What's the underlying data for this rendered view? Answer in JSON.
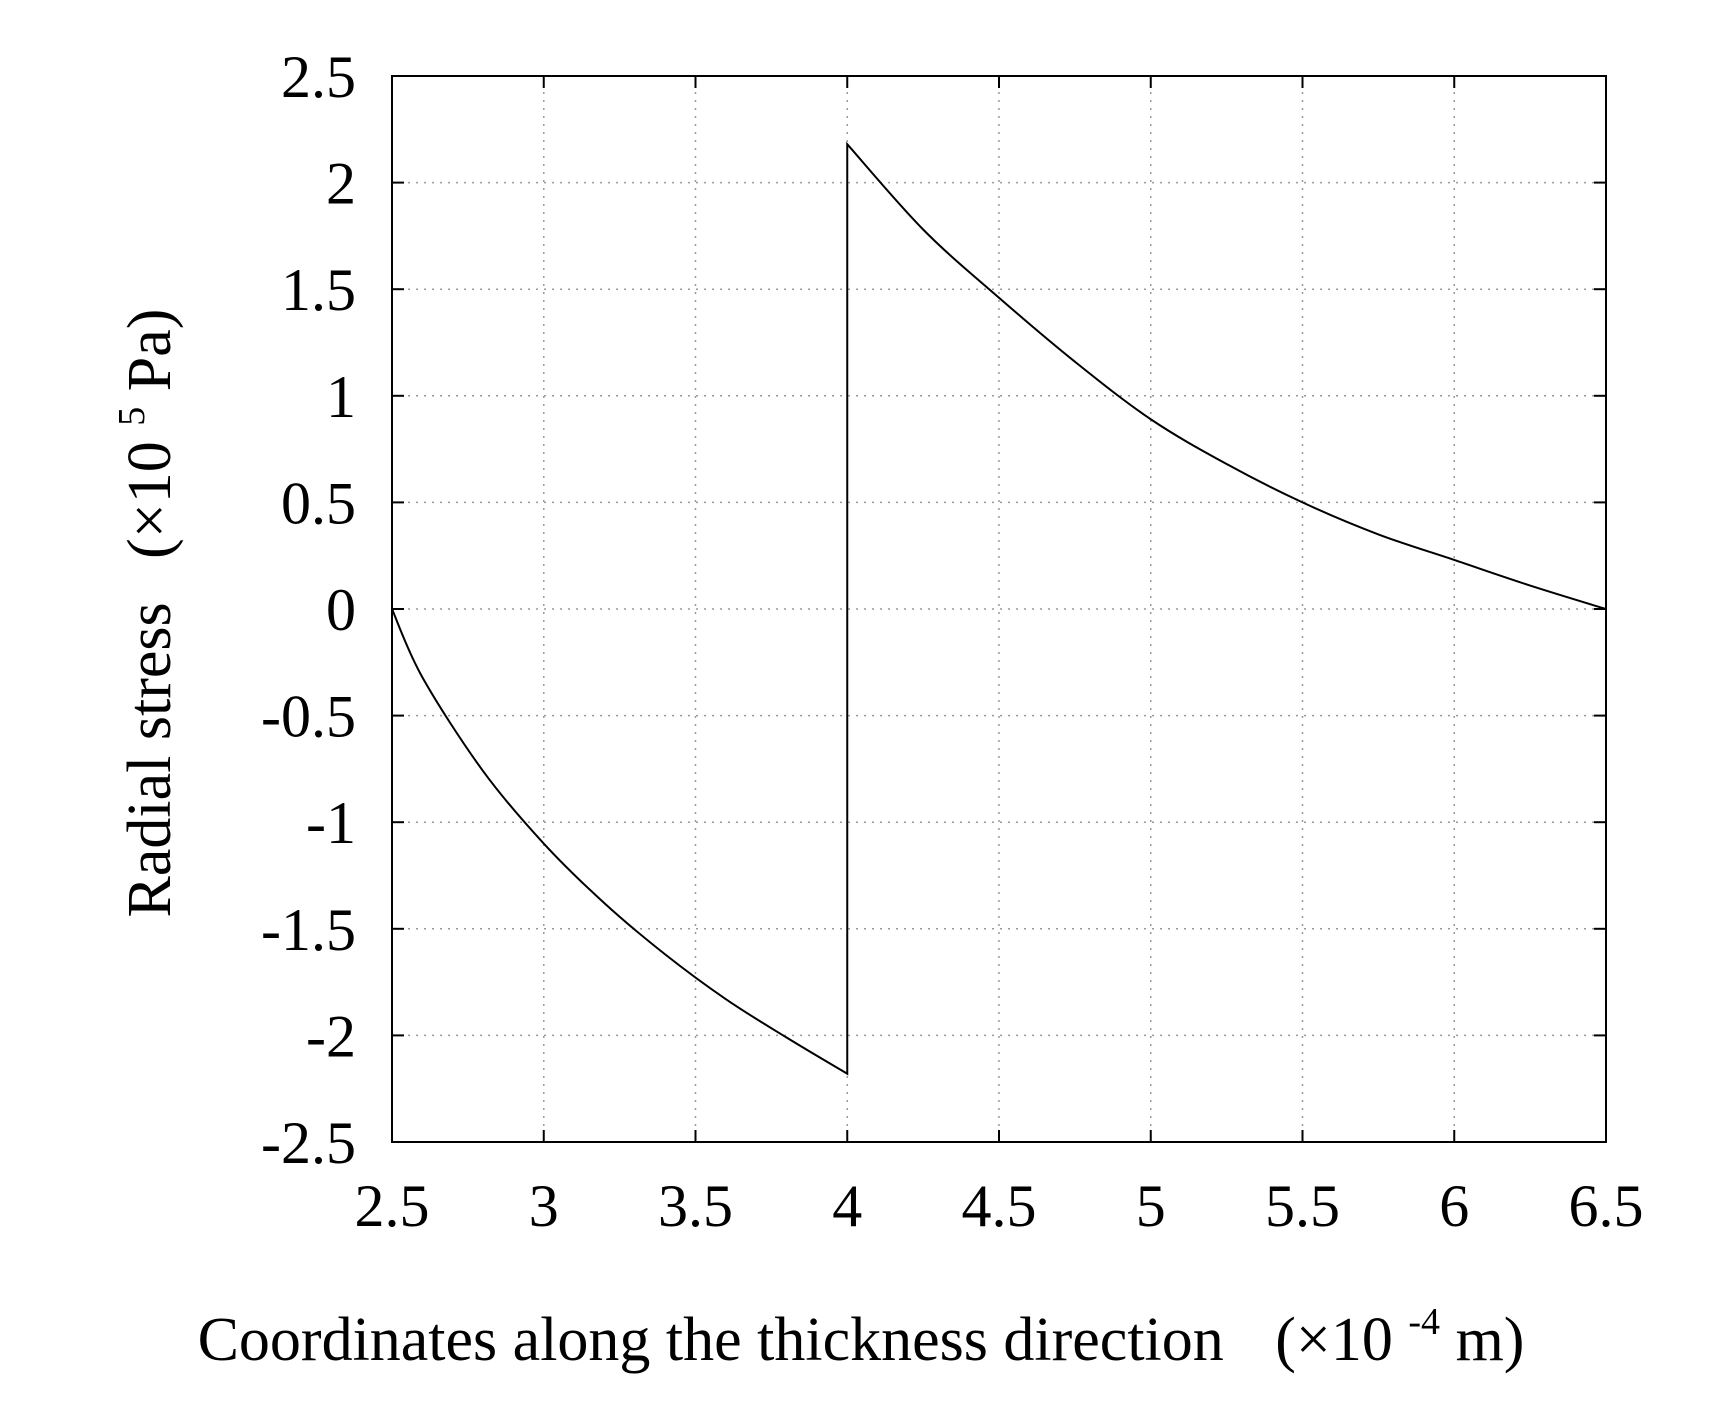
{
  "chart_data": {
    "type": "line",
    "xlabel": {
      "text": "Coordinates along the thickness direction",
      "unit_prefix": "(×10",
      "unit_exponent": "-4",
      "unit_suffix": "m)"
    },
    "ylabel": {
      "text": "Radial stress",
      "unit_prefix": "(×10",
      "unit_exponent": "5",
      "unit_suffix": "Pa)"
    },
    "xlim": [
      2.5,
      6.5
    ],
    "ylim": [
      -2.5,
      2.5
    ],
    "x_ticks": [
      "2.5",
      "3",
      "3.5",
      "4",
      "4.5",
      "5",
      "5.5",
      "6",
      "6.5"
    ],
    "y_ticks": [
      "2.5",
      "2",
      "1.5",
      "1",
      "0.5",
      "0",
      "-0.5",
      "-1",
      "-1.5",
      "-2",
      "-2.5"
    ],
    "grid": true,
    "line_color": "#000000",
    "grid_color": "#9a9a9a",
    "series": [
      {
        "x": [
          2.5,
          2.6,
          2.8,
          3.0,
          3.2,
          3.4,
          3.6,
          3.8,
          4.0
        ],
        "y": [
          0.0,
          -0.32,
          -0.76,
          -1.1,
          -1.38,
          -1.62,
          -1.83,
          -2.01,
          -2.18
        ]
      },
      {
        "x": [
          4.0,
          4.25,
          4.5,
          4.75,
          5.0,
          5.25,
          5.5,
          5.75,
          6.0,
          6.25,
          6.5
        ],
        "y": [
          2.18,
          1.78,
          1.46,
          1.16,
          0.89,
          0.68,
          0.5,
          0.35,
          0.23,
          0.11,
          0.0
        ]
      }
    ]
  }
}
